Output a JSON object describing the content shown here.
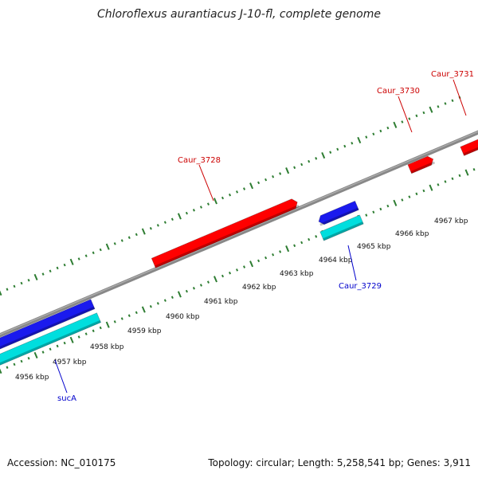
{
  "header": {
    "title": "Chloroflexus aurantiacus J-10-fl, complete genome"
  },
  "footer": {
    "accession": "Accession: NC_010175",
    "stats": "Topology: circular; Length: 5,258,541 bp; Genes: 3,911"
  },
  "colors": {
    "backbone": "#888888",
    "ticks": "#2e7d32",
    "forward_gene": "#ff0000",
    "reverse_gene_dark": "#1a1aee",
    "reverse_gene_cyan": "#00dede",
    "forward_label": "#cc0000",
    "reverse_label": "#0000cc"
  },
  "scale": {
    "unit": "kbp",
    "labels": [
      "4956 kbp",
      "4957 kbp",
      "4958 kbp",
      "4959 kbp",
      "4960 kbp",
      "4961 kbp",
      "4962 kbp",
      "4963 kbp",
      "4964 kbp",
      "4965 kbp",
      "4966 kbp",
      "4967 kbp"
    ]
  },
  "genes": [
    {
      "name": "sucA",
      "strand": "reverse",
      "style": "blue-cyan"
    },
    {
      "name": "Caur_3728",
      "strand": "forward",
      "style": "red"
    },
    {
      "name": "Caur_3729",
      "strand": "reverse",
      "style": "blue-cyan"
    },
    {
      "name": "Caur_3730",
      "strand": "forward",
      "style": "red"
    },
    {
      "name": "Caur_3731",
      "strand": "forward",
      "style": "red"
    }
  ]
}
